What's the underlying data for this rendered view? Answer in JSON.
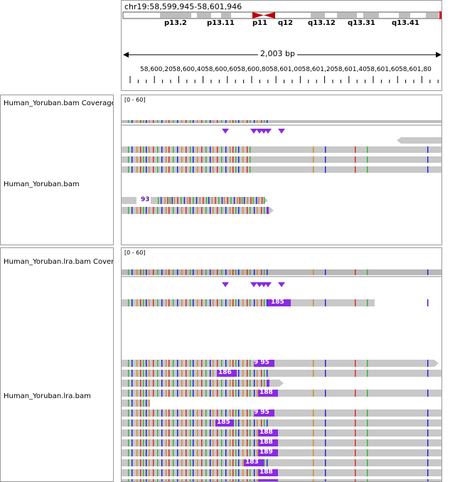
{
  "header": {
    "locus": "chr19:58,599,945-58,601,946",
    "bands": [
      "p13.2",
      "p13.11",
      "p11",
      "q12",
      "q13.12",
      "q13.31",
      "q13.41"
    ],
    "span": "2,003 bp",
    "scale_ticks": [
      "58,600,200 bp",
      "58,600,400 bp",
      "58,600,600 bp",
      "58,600,800 bp",
      "58,601,000 bp",
      "58,601,200 bp",
      "58,601,400 bp",
      "58,601,600 bp",
      "58,601,800 bp"
    ]
  },
  "tracks": {
    "bam1": {
      "coverage_name": "Human_Yoruban.bam Coverage",
      "coverage_range": "[0 - 60]",
      "name": "Human_Yoruban.bam",
      "insertion_label": "93"
    },
    "bam2": {
      "coverage_name": "Human_Yoruban.lra.bam Coverage",
      "coverage_range": "[0 - 60]",
      "name": "Human_Yoruban.lra.bam",
      "insertion_labels": [
        "185",
        "9 95",
        "186",
        "188",
        "9 95",
        "185",
        "188",
        "188",
        "189",
        "183",
        "188"
      ]
    }
  },
  "colors": {
    "read": "#c8c8c8",
    "insertion": "#8a2be2",
    "mismatch_a": "#2bb52b",
    "mismatch_c": "#1a1ae6",
    "mismatch_g": "#d18b20",
    "mismatch_t": "#e02020",
    "centromere": "#c00000"
  }
}
